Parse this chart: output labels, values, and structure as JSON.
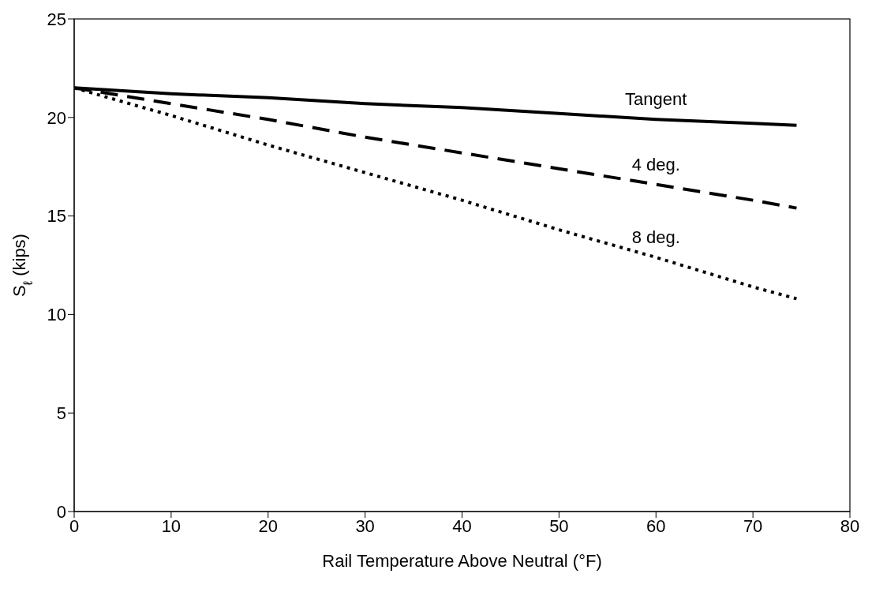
{
  "chart_data": {
    "type": "line",
    "xlabel": "Rail Temperature Above Neutral (°F)",
    "ylabel": "S$_{ℓ}$ (kips)",
    "x": [
      0,
      10,
      20,
      30,
      40,
      50,
      60,
      70,
      74.5
    ],
    "series": [
      {
        "name": "Tangent",
        "color": "#000000",
        "line_style": "solid",
        "values": [
          21.5,
          21.2,
          21.0,
          20.7,
          20.5,
          20.2,
          19.9,
          19.7,
          19.6
        ]
      },
      {
        "name": "4 deg.",
        "color": "#000000",
        "line_style": "dashed",
        "values": [
          21.5,
          20.7,
          19.9,
          19.0,
          18.2,
          17.4,
          16.6,
          15.8,
          15.4
        ]
      },
      {
        "name": "8 deg.",
        "color": "#000000",
        "line_style": "dotted",
        "values": [
          21.5,
          20.1,
          18.6,
          17.2,
          15.8,
          14.3,
          12.9,
          11.4,
          10.8
        ]
      }
    ],
    "xlim": [
      0,
      80
    ],
    "xticks": [
      0,
      10,
      20,
      30,
      40,
      50,
      60,
      70,
      80
    ],
    "ylim": [
      0,
      25
    ],
    "yticks": [
      0,
      5,
      10,
      15,
      20,
      25
    ],
    "grid": false,
    "legend": false,
    "marker": "none"
  }
}
